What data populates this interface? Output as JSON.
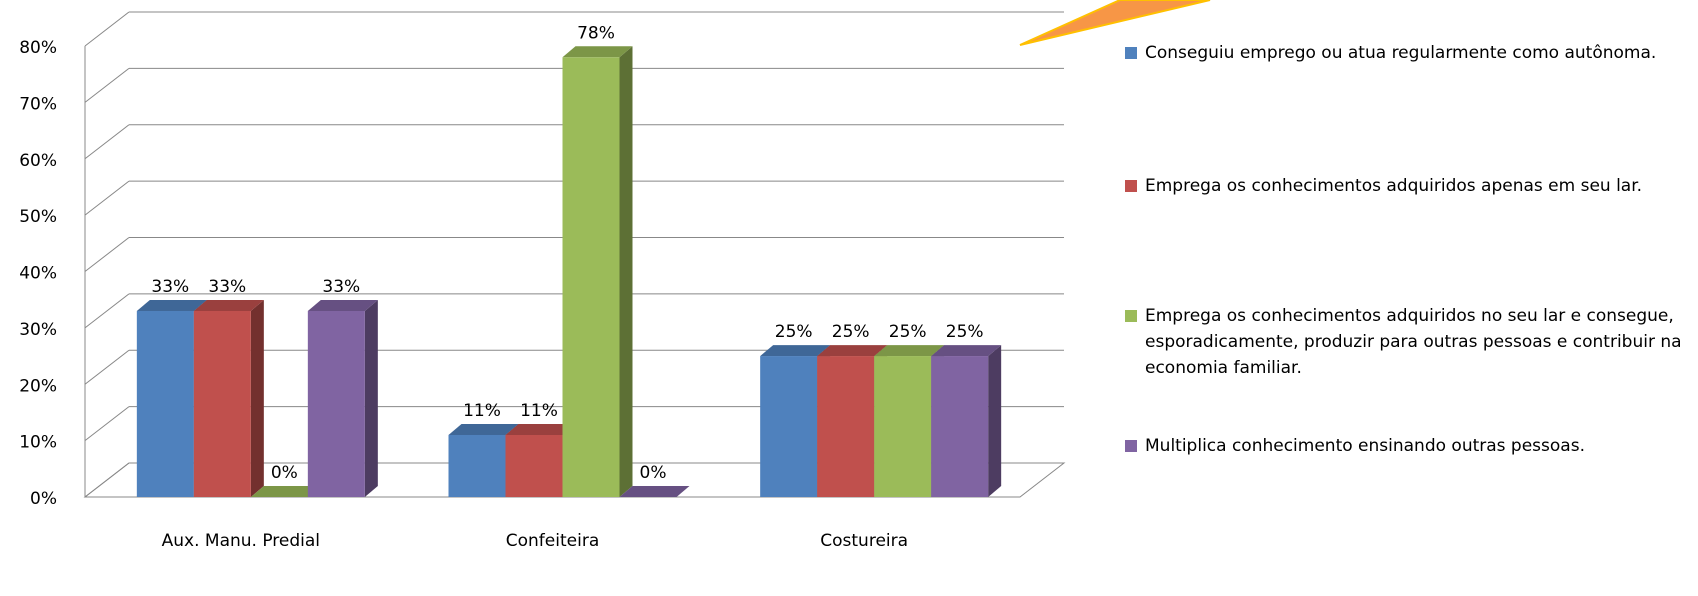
{
  "chart_data": {
    "type": "bar3d",
    "categories": [
      "Aux. Manu. Predial",
      "Confeiteira",
      "Costureira"
    ],
    "series": [
      {
        "name": "Conseguiu emprego ou atua  regularmente como autônoma.",
        "color": "#4f81bd",
        "values": [
          33,
          11,
          25
        ],
        "value_labels": [
          "33%",
          "11%",
          "25%"
        ]
      },
      {
        "name": "Emprega os conhecimentos adquiridos apenas em seu lar.",
        "color": "#c0504d",
        "values": [
          33,
          11,
          25
        ],
        "value_labels": [
          "33%",
          "11%",
          "25%"
        ]
      },
      {
        "name": "Emprega os conhecimentos adquiridos no seu lar e consegue, esporadicamente, produzir para outras pessoas e contribuir na economia familiar.",
        "color": "#9bbb59",
        "values": [
          0,
          78,
          25
        ],
        "value_labels": [
          "0%",
          "78%",
          "25%"
        ]
      },
      {
        "name": "Multiplica conhecimento ensinando outras pessoas.",
        "color": "#8064a2",
        "values": [
          33,
          0,
          25
        ],
        "value_labels": [
          "33%",
          "0%",
          "25%"
        ]
      }
    ],
    "ylim": [
      0,
      80
    ],
    "yticks": [
      {
        "value": 0,
        "label": "0%"
      },
      {
        "value": 10,
        "label": "10%"
      },
      {
        "value": 20,
        "label": "20%"
      },
      {
        "value": 30,
        "label": "30%"
      },
      {
        "value": 40,
        "label": "40%"
      },
      {
        "value": 50,
        "label": "50%"
      },
      {
        "value": 60,
        "label": "60%"
      },
      {
        "value": 70,
        "label": "70%"
      },
      {
        "value": 80,
        "label": "80%"
      }
    ],
    "grid": true,
    "legend": "right"
  }
}
